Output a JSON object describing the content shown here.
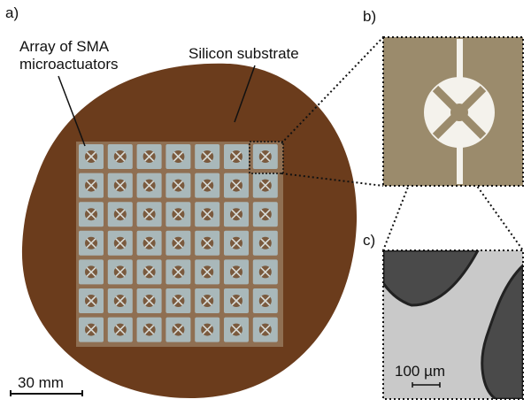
{
  "panels": {
    "a": {
      "label": "a)",
      "annotations": {
        "array": [
          "Array of SMA",
          "microactuators"
        ],
        "substrate": "Silicon substrate"
      },
      "scale_bar": "30 mm"
    },
    "b": {
      "label": "b)"
    },
    "c": {
      "label": "c)",
      "scale_bar": "100 µm"
    }
  }
}
